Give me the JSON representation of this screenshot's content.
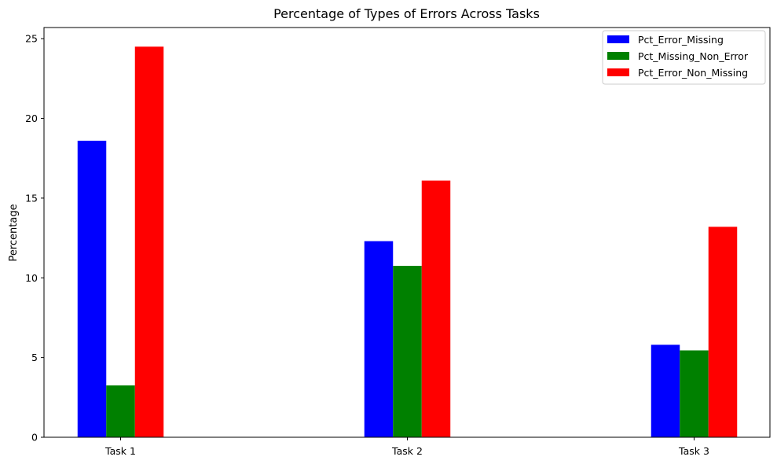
{
  "chart_data": {
    "type": "bar",
    "title": "Percentage of Types of Errors Across Tasks",
    "xlabel": "",
    "ylabel": "Percentage",
    "categories": [
      "Task 1",
      "Task 2",
      "Task 3"
    ],
    "series": [
      {
        "name": "Pct_Error_Missing",
        "color": "#0000ff",
        "values": [
          18.6,
          12.3,
          5.8
        ]
      },
      {
        "name": "Pct_Missing_Non_Error",
        "color": "#008000",
        "values": [
          3.25,
          10.75,
          5.45
        ]
      },
      {
        "name": "Pct_Error_Non_Missing",
        "color": "#ff0000",
        "values": [
          24.5,
          16.1,
          13.2
        ]
      }
    ],
    "ylim": [
      0,
      25.7
    ],
    "yticks": [
      0,
      5,
      10,
      15,
      20,
      25
    ],
    "grid": false,
    "legend_position": "top-right"
  }
}
